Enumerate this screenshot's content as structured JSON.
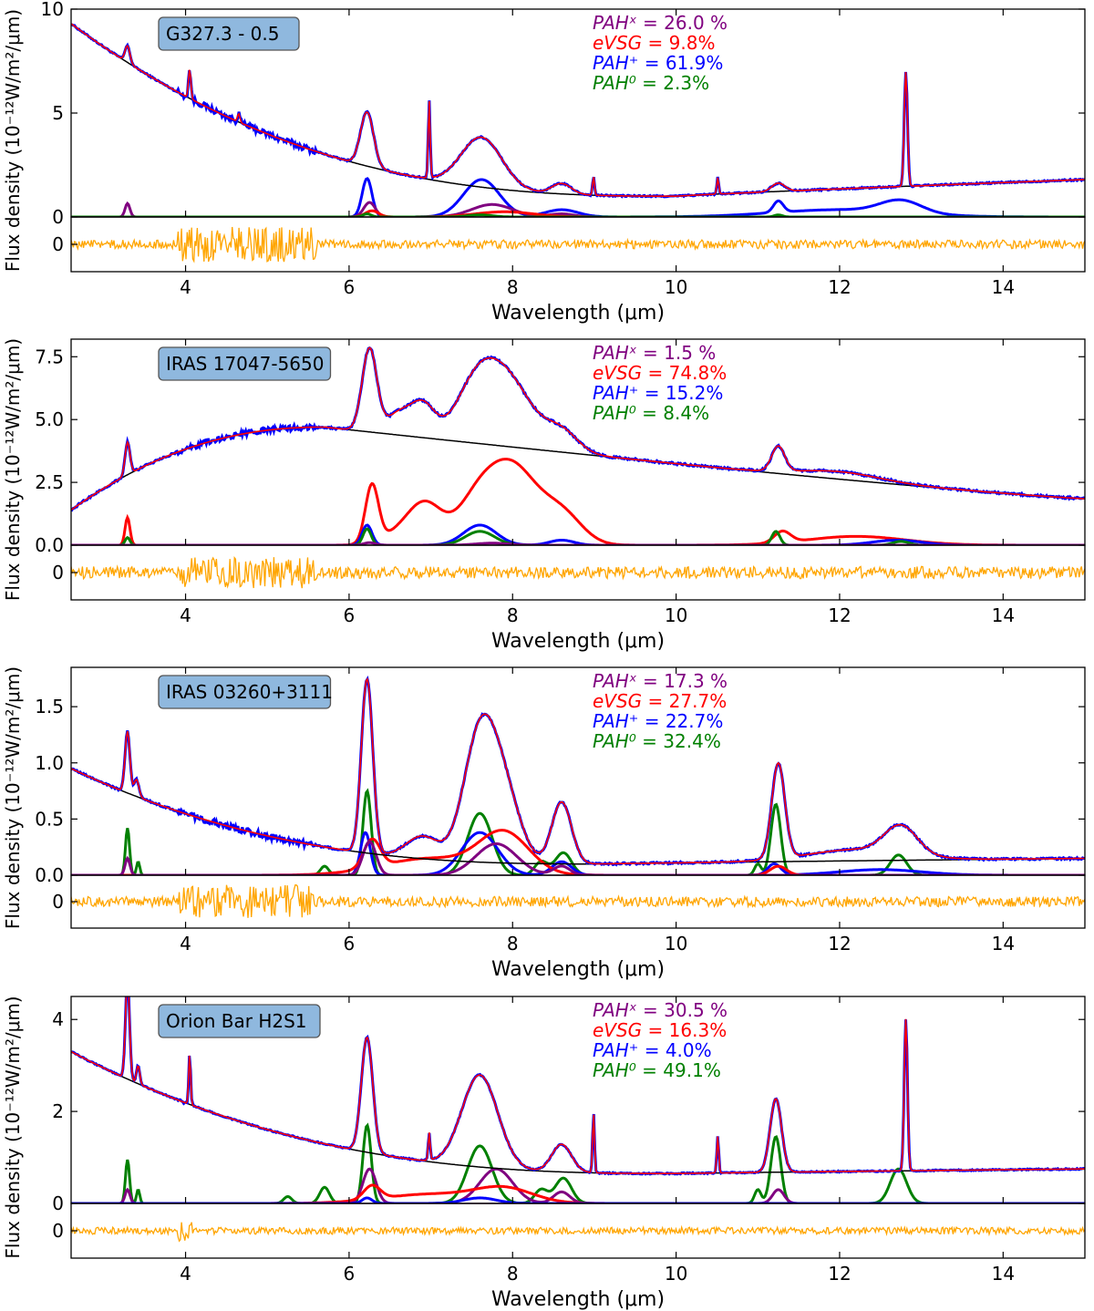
{
  "chart_data": [
    {
      "type": "line",
      "panel": 1,
      "source_label": "G327.3 - 0.5",
      "xlabel": "Wavelength (μm)",
      "ylabel": "Flux density (10⁻¹²W/m²/μm)",
      "xlim": [
        2.6,
        15.0
      ],
      "ylim": [
        0,
        10
      ],
      "yticks": [
        0,
        5,
        10
      ],
      "ytick_labels": [
        "0",
        "5",
        "10"
      ],
      "xticks": [
        4,
        6,
        8,
        10,
        12,
        14
      ],
      "xtick_labels": [
        "4",
        "6",
        "8",
        "10",
        "12",
        "14"
      ],
      "residual_tick_label": "0",
      "fractions": [
        {
          "label": "PAHˣ =",
          "value": "26.0 %",
          "color": "#800080"
        },
        {
          "label": "eVSG =",
          "value": "9.8%",
          "color": "#ff0000"
        },
        {
          "label": "PAH⁺ =",
          "value": "61.9%",
          "color": "#0000ff"
        },
        {
          "label": "PAH⁰ =",
          "value": "2.3%",
          "color": "#008000"
        }
      ],
      "continuum": {
        "start": 9.3,
        "min_x": 10.0,
        "min_y": 1.0,
        "end": 1.8,
        "shape": "decay_rise"
      },
      "spectrum_features": [
        {
          "x": 3.29,
          "h": 0.8,
          "w": 0.03
        },
        {
          "x": 4.05,
          "h": 1.4,
          "w": 0.015
        },
        {
          "x": 4.65,
          "h": 0.4,
          "w": 0.015
        },
        {
          "x": 6.22,
          "h": 2.6,
          "w": 0.08
        },
        {
          "x": 6.98,
          "h": 3.7,
          "w": 0.012
        },
        {
          "x": 7.62,
          "h": 2.4,
          "w": 0.25
        },
        {
          "x": 8.6,
          "h": 0.5,
          "w": 0.12
        },
        {
          "x": 8.99,
          "h": 0.9,
          "w": 0.012
        },
        {
          "x": 10.51,
          "h": 0.8,
          "w": 0.012
        },
        {
          "x": 11.25,
          "h": 0.4,
          "w": 0.08
        },
        {
          "x": 12.81,
          "h": 5.5,
          "w": 0.02
        }
      ],
      "components": [
        {
          "name": "PAH+",
          "color": "#0000ff",
          "features": [
            {
              "x": 6.22,
              "h": 1.85,
              "w": 0.06
            },
            {
              "x": 7.62,
              "h": 1.8,
              "w": 0.22
            },
            {
              "x": 8.6,
              "h": 0.35,
              "w": 0.2
            },
            {
              "x": 11.25,
              "h": 0.55,
              "w": 0.06
            },
            {
              "x": 12.75,
              "h": 0.6,
              "w": 0.25
            },
            {
              "x": 12.0,
              "h": 0.35,
              "w": 0.8
            }
          ]
        },
        {
          "name": "PAHx",
          "color": "#800080",
          "features": [
            {
              "x": 3.29,
              "h": 0.65,
              "w": 0.03
            },
            {
              "x": 6.25,
              "h": 0.7,
              "w": 0.07
            },
            {
              "x": 7.75,
              "h": 0.6,
              "w": 0.25
            },
            {
              "x": 8.6,
              "h": 0.15,
              "w": 0.15
            }
          ]
        },
        {
          "name": "eVSG",
          "color": "#ff0000",
          "features": [
            {
              "x": 6.28,
              "h": 0.3,
              "w": 0.08
            },
            {
              "x": 7.9,
              "h": 0.25,
              "w": 0.35
            }
          ]
        },
        {
          "name": "PAH0",
          "color": "#008000",
          "features": [
            {
              "x": 6.22,
              "h": 0.15,
              "w": 0.05
            },
            {
              "x": 7.6,
              "h": 0.1,
              "w": 0.15
            },
            {
              "x": 11.25,
              "h": 0.1,
              "w": 0.05
            }
          ]
        }
      ],
      "residual_noise": {
        "base": 0.25,
        "high_region": [
          3.9,
          5.6
        ],
        "high": 1.0
      }
    },
    {
      "type": "line",
      "panel": 2,
      "source_label": "IRAS 17047-5650",
      "xlabel": "Wavelength (μm)",
      "ylabel": "Flux density (10⁻¹²W/m²/μm)",
      "xlim": [
        2.6,
        15.0
      ],
      "ylim": [
        0,
        8.2
      ],
      "yticks": [
        0,
        2.5,
        5.0,
        7.5
      ],
      "ytick_labels": [
        "0.0",
        "2.5",
        "5.0",
        "7.5"
      ],
      "xticks": [
        4,
        6,
        8,
        10,
        12,
        14
      ],
      "xtick_labels": [
        "4",
        "6",
        "8",
        "10",
        "12",
        "14"
      ],
      "residual_tick_label": "0",
      "fractions": [
        {
          "label": "PAHˣ =",
          "value": "1.5 %",
          "color": "#800080"
        },
        {
          "label": "eVSG =",
          "value": "74.8%",
          "color": "#ff0000"
        },
        {
          "label": "PAH⁺ =",
          "value": "15.2%",
          "color": "#0000ff"
        },
        {
          "label": "PAH⁰ =",
          "value": "8.4%",
          "color": "#008000"
        }
      ],
      "continuum": {
        "start": 1.4,
        "peak_x": 5.7,
        "peak_y": 4.7,
        "end": 1.85,
        "shape": "hump"
      },
      "spectrum_features": [
        {
          "x": 3.29,
          "h": 1.3,
          "w": 0.03
        },
        {
          "x": 6.25,
          "h": 3.3,
          "w": 0.09
        },
        {
          "x": 6.6,
          "h": 0.8,
          "w": 0.15
        },
        {
          "x": 6.9,
          "h": 1.3,
          "w": 0.15
        },
        {
          "x": 7.55,
          "h": 2.0,
          "w": 0.25
        },
        {
          "x": 7.95,
          "h": 2.5,
          "w": 0.3
        },
        {
          "x": 8.6,
          "h": 0.8,
          "w": 0.2
        },
        {
          "x": 11.25,
          "h": 1.0,
          "w": 0.08
        },
        {
          "x": 12.0,
          "h": 0.3,
          "w": 0.5
        }
      ],
      "components": [
        {
          "name": "eVSG",
          "color": "#ff0000",
          "features": [
            {
              "x": 3.29,
              "h": 1.1,
              "w": 0.03
            },
            {
              "x": 6.28,
              "h": 2.3,
              "w": 0.08
            },
            {
              "x": 6.7,
              "h": 0.6,
              "w": 0.25
            },
            {
              "x": 6.95,
              "h": 1.3,
              "w": 0.2
            },
            {
              "x": 7.55,
              "h": 1.5,
              "w": 0.25
            },
            {
              "x": 8.0,
              "h": 3.0,
              "w": 0.3
            },
            {
              "x": 8.6,
              "h": 1.2,
              "w": 0.25
            },
            {
              "x": 11.3,
              "h": 0.45,
              "w": 0.1
            },
            {
              "x": 12.2,
              "h": 0.35,
              "w": 0.6
            }
          ]
        },
        {
          "name": "PAH+",
          "color": "#0000ff",
          "features": [
            {
              "x": 6.22,
              "h": 0.8,
              "w": 0.06
            },
            {
              "x": 7.6,
              "h": 0.8,
              "w": 0.2
            },
            {
              "x": 8.6,
              "h": 0.2,
              "w": 0.15
            },
            {
              "x": 12.7,
              "h": 0.2,
              "w": 0.3
            }
          ]
        },
        {
          "name": "PAH0",
          "color": "#008000",
          "features": [
            {
              "x": 3.29,
              "h": 0.3,
              "w": 0.03
            },
            {
              "x": 6.22,
              "h": 0.65,
              "w": 0.05
            },
            {
              "x": 7.6,
              "h": 0.55,
              "w": 0.18
            },
            {
              "x": 11.22,
              "h": 0.55,
              "w": 0.05
            },
            {
              "x": 12.75,
              "h": 0.15,
              "w": 0.1
            }
          ]
        },
        {
          "name": "PAHx",
          "color": "#800080",
          "features": [
            {
              "x": 6.25,
              "h": 0.1,
              "w": 0.07
            },
            {
              "x": 7.75,
              "h": 0.08,
              "w": 0.2
            }
          ]
        }
      ],
      "residual_noise": {
        "base": 0.35,
        "high_region": [
          3.9,
          5.6
        ],
        "high": 0.9
      }
    },
    {
      "type": "line",
      "panel": 3,
      "source_label": "IRAS 03260+3111",
      "xlabel": "Wavelength (μm)",
      "ylabel": "Flux density (10⁻¹²W/m²/μm)",
      "xlim": [
        2.6,
        15.0
      ],
      "ylim": [
        0,
        1.85
      ],
      "yticks": [
        0,
        0.5,
        1.0,
        1.5
      ],
      "ytick_labels": [
        "0.0",
        "0.5",
        "1.0",
        "1.5"
      ],
      "xticks": [
        4,
        6,
        8,
        10,
        12,
        14
      ],
      "xtick_labels": [
        "4",
        "6",
        "8",
        "10",
        "12",
        "14"
      ],
      "residual_tick_label": "0",
      "fractions": [
        {
          "label": "PAHˣ =",
          "value": "17.3 %",
          "color": "#800080"
        },
        {
          "label": "eVSG =",
          "value": "27.7%",
          "color": "#ff0000"
        },
        {
          "label": "PAH⁺ =",
          "value": "22.7%",
          "color": "#0000ff"
        },
        {
          "label": "PAH⁰ =",
          "value": "32.4%",
          "color": "#008000"
        }
      ],
      "continuum": {
        "start": 0.95,
        "min_x": 9.0,
        "min_y": 0.1,
        "end": 0.15,
        "shape": "decay_rise"
      },
      "spectrum_features": [
        {
          "x": 3.29,
          "h": 0.55,
          "w": 0.03
        },
        {
          "x": 3.4,
          "h": 0.15,
          "w": 0.03
        },
        {
          "x": 6.22,
          "h": 1.55,
          "w": 0.07
        },
        {
          "x": 6.9,
          "h": 0.2,
          "w": 0.2
        },
        {
          "x": 7.6,
          "h": 1.1,
          "w": 0.2
        },
        {
          "x": 7.9,
          "h": 0.55,
          "w": 0.2
        },
        {
          "x": 8.6,
          "h": 0.55,
          "w": 0.12
        },
        {
          "x": 11.25,
          "h": 0.85,
          "w": 0.08
        },
        {
          "x": 12.75,
          "h": 0.25,
          "w": 0.2
        },
        {
          "x": 12.2,
          "h": 0.1,
          "w": 0.6
        }
      ],
      "components": [
        {
          "name": "PAH0",
          "color": "#008000",
          "features": [
            {
              "x": 3.29,
              "h": 0.42,
              "w": 0.025
            },
            {
              "x": 3.42,
              "h": 0.12,
              "w": 0.02
            },
            {
              "x": 5.7,
              "h": 0.08,
              "w": 0.05
            },
            {
              "x": 6.22,
              "h": 0.75,
              "w": 0.05
            },
            {
              "x": 7.6,
              "h": 0.55,
              "w": 0.15
            },
            {
              "x": 8.35,
              "h": 0.12,
              "w": 0.08
            },
            {
              "x": 8.62,
              "h": 0.2,
              "w": 0.1
            },
            {
              "x": 11.0,
              "h": 0.1,
              "w": 0.04
            },
            {
              "x": 11.22,
              "h": 0.63,
              "w": 0.06
            },
            {
              "x": 12.72,
              "h": 0.18,
              "w": 0.1
            }
          ]
        },
        {
          "name": "PAH+",
          "color": "#0000ff",
          "features": [
            {
              "x": 6.2,
              "h": 0.38,
              "w": 0.06
            },
            {
              "x": 7.6,
              "h": 0.38,
              "w": 0.22
            },
            {
              "x": 8.6,
              "h": 0.12,
              "w": 0.12
            },
            {
              "x": 11.2,
              "h": 0.1,
              "w": 0.08
            },
            {
              "x": 12.5,
              "h": 0.05,
              "w": 0.5
            }
          ]
        },
        {
          "name": "eVSG",
          "color": "#ff0000",
          "features": [
            {
              "x": 6.28,
              "h": 0.25,
              "w": 0.1
            },
            {
              "x": 7.0,
              "h": 0.15,
              "w": 0.6
            },
            {
              "x": 7.9,
              "h": 0.35,
              "w": 0.3
            },
            {
              "x": 11.25,
              "h": 0.08,
              "w": 0.1
            }
          ]
        },
        {
          "name": "PAHx",
          "color": "#800080",
          "features": [
            {
              "x": 3.29,
              "h": 0.15,
              "w": 0.03
            },
            {
              "x": 6.25,
              "h": 0.3,
              "w": 0.08
            },
            {
              "x": 7.8,
              "h": 0.28,
              "w": 0.25
            },
            {
              "x": 8.6,
              "h": 0.08,
              "w": 0.1
            }
          ]
        }
      ],
      "residual_noise": {
        "base": 0.3,
        "high_region": [
          3.9,
          5.6
        ],
        "high": 1.0
      }
    },
    {
      "type": "line",
      "panel": 4,
      "source_label": "Orion Bar H2S1",
      "xlabel": "Wavelength (μm)",
      "ylabel": "Flux density (10⁻¹²W/m²/μm)",
      "xlim": [
        2.6,
        15.0
      ],
      "ylim": [
        0,
        4.5
      ],
      "yticks": [
        0,
        2,
        4
      ],
      "ytick_labels": [
        "0",
        "2",
        "4"
      ],
      "xticks": [
        4,
        6,
        8,
        10,
        12,
        14
      ],
      "xtick_labels": [
        "4",
        "6",
        "8",
        "10",
        "12",
        "14"
      ],
      "residual_tick_label": "0",
      "fractions": [
        {
          "label": "PAHˣ =",
          "value": "30.5 %",
          "color": "#800080"
        },
        {
          "label": "eVSG =",
          "value": "16.3%",
          "color": "#ff0000"
        },
        {
          "label": "PAH⁺ =",
          "value": "4.0%",
          "color": "#0000ff"
        },
        {
          "label": "PAH⁰ =",
          "value": "49.1%",
          "color": "#008000"
        }
      ],
      "continuum": {
        "start": 3.3,
        "min_x": 10.0,
        "min_y": 0.65,
        "end": 0.75,
        "shape": "decay_rise"
      },
      "spectrum_features": [
        {
          "x": 3.29,
          "h": 2.2,
          "w": 0.025
        },
        {
          "x": 3.42,
          "h": 0.4,
          "w": 0.02
        },
        {
          "x": 4.05,
          "h": 1.1,
          "w": 0.012
        },
        {
          "x": 6.22,
          "h": 2.5,
          "w": 0.07
        },
        {
          "x": 6.98,
          "h": 0.6,
          "w": 0.012
        },
        {
          "x": 7.6,
          "h": 2.0,
          "w": 0.22
        },
        {
          "x": 8.6,
          "h": 0.6,
          "w": 0.12
        },
        {
          "x": 8.99,
          "h": 1.3,
          "w": 0.012
        },
        {
          "x": 10.51,
          "h": 0.8,
          "w": 0.012
        },
        {
          "x": 11.22,
          "h": 1.6,
          "w": 0.07
        },
        {
          "x": 12.81,
          "h": 3.3,
          "w": 0.02
        }
      ],
      "components": [
        {
          "name": "PAH0",
          "color": "#008000",
          "features": [
            {
              "x": 3.29,
              "h": 0.95,
              "w": 0.025
            },
            {
              "x": 3.42,
              "h": 0.3,
              "w": 0.02
            },
            {
              "x": 5.25,
              "h": 0.15,
              "w": 0.05
            },
            {
              "x": 5.7,
              "h": 0.35,
              "w": 0.06
            },
            {
              "x": 6.22,
              "h": 1.7,
              "w": 0.05
            },
            {
              "x": 7.6,
              "h": 1.25,
              "w": 0.15
            },
            {
              "x": 8.35,
              "h": 0.3,
              "w": 0.08
            },
            {
              "x": 8.62,
              "h": 0.55,
              "w": 0.1
            },
            {
              "x": 11.0,
              "h": 0.3,
              "w": 0.04
            },
            {
              "x": 11.22,
              "h": 1.45,
              "w": 0.06
            },
            {
              "x": 12.72,
              "h": 0.75,
              "w": 0.1
            }
          ]
        },
        {
          "name": "PAHx",
          "color": "#800080",
          "features": [
            {
              "x": 3.29,
              "h": 0.3,
              "w": 0.03
            },
            {
              "x": 6.25,
              "h": 0.75,
              "w": 0.08
            },
            {
              "x": 7.8,
              "h": 0.75,
              "w": 0.2
            },
            {
              "x": 8.6,
              "h": 0.25,
              "w": 0.1
            },
            {
              "x": 11.25,
              "h": 0.3,
              "w": 0.07
            }
          ]
        },
        {
          "name": "eVSG",
          "color": "#ff0000",
          "features": [
            {
              "x": 6.28,
              "h": 0.3,
              "w": 0.1
            },
            {
              "x": 7.0,
              "h": 0.2,
              "w": 0.6
            },
            {
              "x": 7.9,
              "h": 0.3,
              "w": 0.35
            }
          ]
        },
        {
          "name": "PAH+",
          "color": "#0000ff",
          "features": [
            {
              "x": 6.22,
              "h": 0.12,
              "w": 0.06
            },
            {
              "x": 7.6,
              "h": 0.12,
              "w": 0.2
            }
          ]
        }
      ],
      "residual_noise": {
        "base": 0.2,
        "high_region": [
          3.9,
          4.1
        ],
        "high": 0.6
      }
    }
  ]
}
